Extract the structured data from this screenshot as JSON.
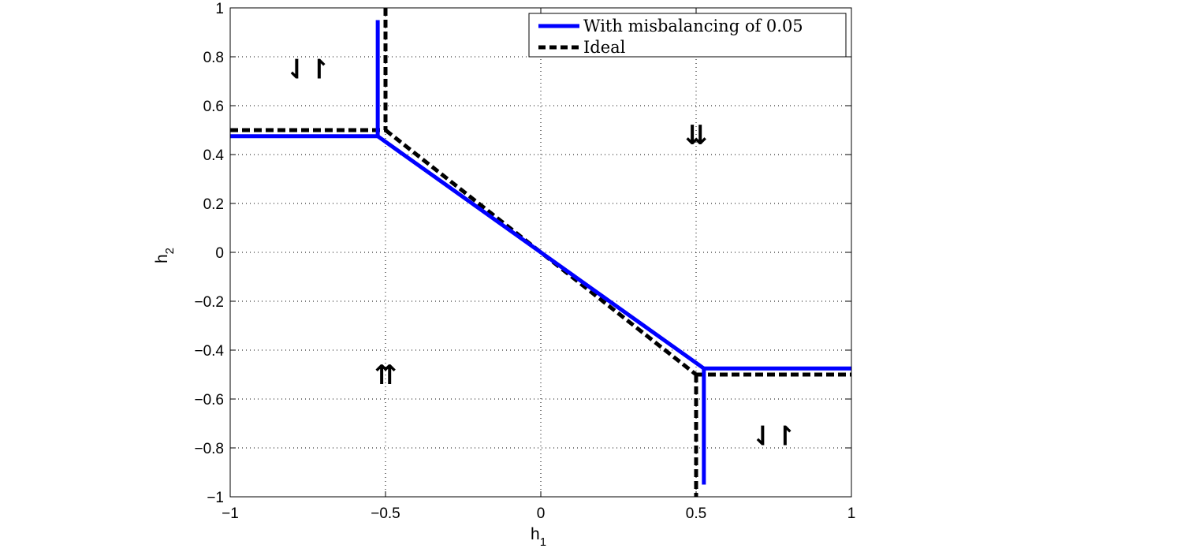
{
  "chart_data": {
    "type": "line",
    "xlabel": "h",
    "xlabel_sub": "1",
    "ylabel": "h",
    "ylabel_sub": "2",
    "xlim": [
      -1,
      1
    ],
    "ylim": [
      -1,
      1
    ],
    "grid": true,
    "grid_style": "dotted",
    "legend_position": "top-right",
    "x_ticks": [
      {
        "value": -1,
        "label": "−1"
      },
      {
        "value": -0.5,
        "label": "−0.5"
      },
      {
        "value": 0,
        "label": "0"
      },
      {
        "value": 0.5,
        "label": "0.5"
      },
      {
        "value": 1,
        "label": "1"
      }
    ],
    "y_ticks": [
      {
        "value": 1,
        "label": "1"
      },
      {
        "value": 0.8,
        "label": "0.8"
      },
      {
        "value": 0.6,
        "label": "0.6"
      },
      {
        "value": 0.4,
        "label": "0.4"
      },
      {
        "value": 0.2,
        "label": "0.2"
      },
      {
        "value": 0,
        "label": "0"
      },
      {
        "value": -0.2,
        "label": "−0.2"
      },
      {
        "value": -0.4,
        "label": "−0.4"
      },
      {
        "value": -0.6,
        "label": "−0.6"
      },
      {
        "value": -0.8,
        "label": "−0.8"
      },
      {
        "value": -1,
        "label": "−1"
      }
    ],
    "series": [
      {
        "name": "With misbalancing of 0.05",
        "color": "#0000ff",
        "style": "solid",
        "segments": [
          [
            [
              -1,
              0.475
            ],
            [
              -0.525,
              0.475
            ]
          ],
          [
            [
              -0.525,
              0.95
            ],
            [
              -0.525,
              0.475
            ]
          ],
          [
            [
              -0.525,
              0.475
            ],
            [
              0.525,
              -0.475
            ]
          ],
          [
            [
              0.525,
              -0.475
            ],
            [
              1,
              -0.475
            ]
          ],
          [
            [
              0.525,
              -0.475
            ],
            [
              0.525,
              -0.95
            ]
          ]
        ]
      },
      {
        "name": "Ideal",
        "color": "#000000",
        "style": "dashed",
        "segments": [
          [
            [
              -1,
              0.5
            ],
            [
              -0.5,
              0.5
            ]
          ],
          [
            [
              -0.5,
              1
            ],
            [
              -0.5,
              0.5
            ]
          ],
          [
            [
              -0.5,
              0.5
            ],
            [
              0.5,
              -0.5
            ]
          ],
          [
            [
              0.5,
              -0.5
            ],
            [
              1,
              -0.5
            ]
          ],
          [
            [
              0.5,
              -0.5
            ],
            [
              0.5,
              -1
            ]
          ]
        ]
      }
    ],
    "annotations": [
      {
        "text": "⇃↾",
        "x": -0.75,
        "y": 0.75
      },
      {
        "text": "⇊",
        "x": 0.5,
        "y": 0.48
      },
      {
        "text": "⇈",
        "x": -0.5,
        "y": -0.5
      },
      {
        "text": "⇃↾",
        "x": 0.75,
        "y": -0.75
      }
    ]
  }
}
